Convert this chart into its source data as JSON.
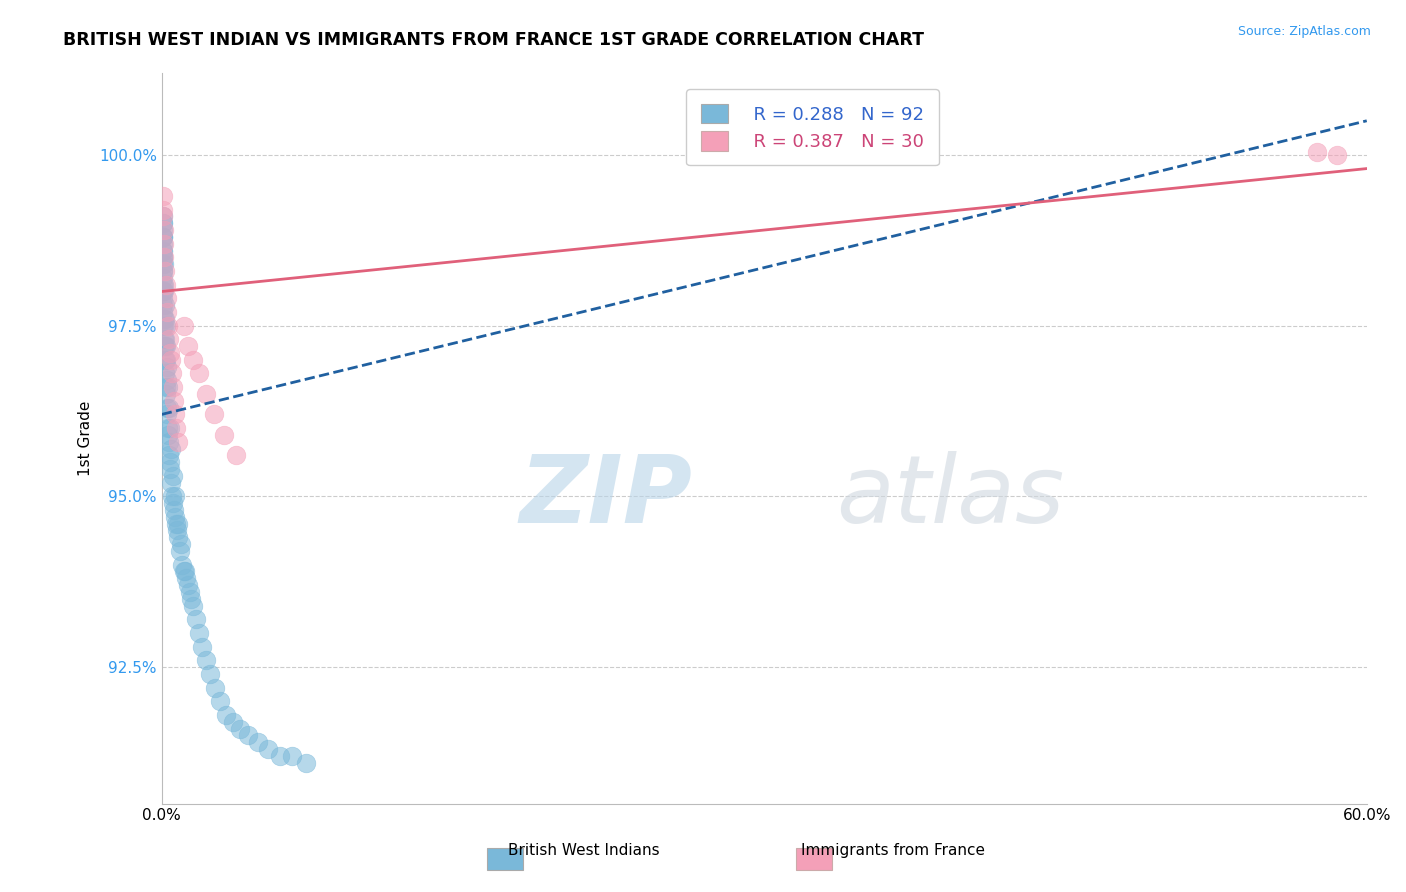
{
  "title": "BRITISH WEST INDIAN VS IMMIGRANTS FROM FRANCE 1ST GRADE CORRELATION CHART",
  "source_text": "Source: ZipAtlas.com",
  "ylabel": "1st Grade",
  "watermark_zip": "ZIP",
  "watermark_atlas": "atlas",
  "xmin": 0.0,
  "xmax": 60.0,
  "ymin": 90.5,
  "ymax": 101.2,
  "yticks": [
    92.5,
    95.0,
    97.5,
    100.0
  ],
  "ytick_labels": [
    "92.5%",
    "95.0%",
    "97.5%",
    "100.0%"
  ],
  "xticks": [
    0.0,
    60.0
  ],
  "xtick_labels": [
    "0.0%",
    "60.0%"
  ],
  "legend_r1": "R = 0.288",
  "legend_n1": "N = 92",
  "legend_r2": "R = 0.387",
  "legend_n2": "N = 30",
  "color_blue": "#7ab8d9",
  "color_pink": "#f4a0b8",
  "color_blue_line": "#2060a0",
  "color_pink_line": "#e0607a",
  "blue_scatter_x": [
    0.05,
    0.05,
    0.05,
    0.05,
    0.05,
    0.05,
    0.05,
    0.05,
    0.05,
    0.05,
    0.05,
    0.05,
    0.08,
    0.08,
    0.08,
    0.08,
    0.08,
    0.1,
    0.1,
    0.1,
    0.12,
    0.12,
    0.15,
    0.15,
    0.15,
    0.18,
    0.18,
    0.2,
    0.2,
    0.22,
    0.25,
    0.25,
    0.28,
    0.3,
    0.32,
    0.35,
    0.38,
    0.4,
    0.42,
    0.45,
    0.5,
    0.55,
    0.6,
    0.65,
    0.7,
    0.75,
    0.8,
    0.9,
    1.0,
    1.1,
    1.2,
    1.3,
    1.4,
    1.55,
    1.7,
    1.85,
    2.0,
    2.2,
    2.4,
    2.65,
    2.9,
    3.2,
    3.55,
    3.9,
    4.3,
    4.8,
    5.3,
    5.9,
    6.5,
    7.2,
    0.06,
    0.06,
    0.07,
    0.07,
    0.09,
    0.09,
    0.11,
    0.13,
    0.16,
    0.19,
    0.23,
    0.27,
    0.31,
    0.36,
    0.41,
    0.48,
    0.58,
    0.68,
    0.8,
    0.95,
    1.15,
    1.45
  ],
  "blue_scatter_y": [
    97.8,
    97.9,
    98.0,
    98.1,
    98.2,
    98.3,
    98.4,
    98.5,
    98.6,
    98.7,
    98.8,
    99.0,
    97.5,
    97.7,
    98.0,
    98.3,
    98.5,
    97.3,
    97.6,
    98.0,
    97.2,
    97.5,
    97.0,
    97.3,
    97.6,
    96.8,
    97.2,
    96.6,
    97.0,
    96.5,
    96.3,
    96.7,
    96.2,
    96.0,
    95.9,
    95.8,
    95.6,
    95.5,
    95.4,
    95.2,
    95.0,
    94.9,
    94.8,
    94.7,
    94.6,
    94.5,
    94.4,
    94.2,
    94.0,
    93.9,
    93.8,
    93.7,
    93.6,
    93.4,
    93.2,
    93.0,
    92.8,
    92.6,
    92.4,
    92.2,
    92.0,
    91.8,
    91.7,
    91.6,
    91.5,
    91.4,
    91.3,
    91.2,
    91.2,
    91.1,
    98.9,
    99.1,
    98.8,
    99.0,
    98.6,
    98.8,
    98.4,
    98.1,
    97.8,
    97.5,
    97.2,
    96.9,
    96.6,
    96.3,
    96.0,
    95.7,
    95.3,
    95.0,
    94.6,
    94.3,
    93.9,
    93.5
  ],
  "pink_scatter_x": [
    0.06,
    0.07,
    0.08,
    0.1,
    0.12,
    0.14,
    0.16,
    0.2,
    0.24,
    0.28,
    0.32,
    0.36,
    0.4,
    0.45,
    0.5,
    0.55,
    0.6,
    0.65,
    0.72,
    0.8,
    1.1,
    1.3,
    1.55,
    1.85,
    2.2,
    2.6,
    3.1,
    3.7,
    57.5,
    58.5
  ],
  "pink_scatter_y": [
    99.2,
    99.4,
    99.1,
    98.9,
    98.7,
    98.5,
    98.3,
    98.1,
    97.9,
    97.7,
    97.5,
    97.3,
    97.1,
    97.0,
    96.8,
    96.6,
    96.4,
    96.2,
    96.0,
    95.8,
    97.5,
    97.2,
    97.0,
    96.8,
    96.5,
    96.2,
    95.9,
    95.6,
    100.05,
    100.0
  ],
  "blue_line_x0": 0.0,
  "blue_line_x1": 60.0,
  "blue_line_y0": 96.2,
  "blue_line_y1": 100.5,
  "pink_line_x0": 0.0,
  "pink_line_x1": 60.0,
  "pink_line_y0": 98.0,
  "pink_line_y1": 99.8
}
